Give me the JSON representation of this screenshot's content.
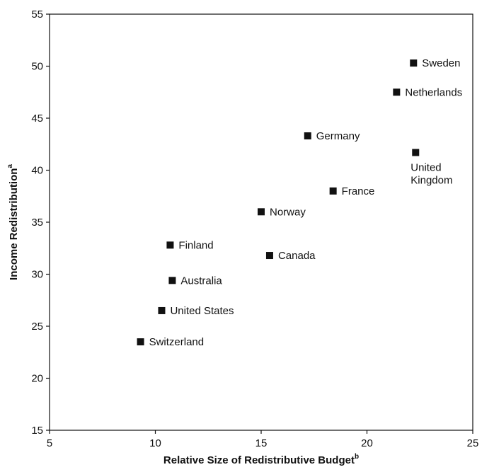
{
  "chart_data": {
    "type": "scatter",
    "xlabel": "Relative Size of Redistributive Budget",
    "xlabel_sup": "b",
    "ylabel": "Income Redistribution",
    "ylabel_sup": "a",
    "xlim": [
      5,
      25
    ],
    "ylim": [
      15,
      55
    ],
    "xticks": [
      "5",
      "10",
      "15",
      "20",
      "25"
    ],
    "yticks": [
      "15",
      "20",
      "25",
      "30",
      "35",
      "40",
      "45",
      "50",
      "55"
    ],
    "grid": false,
    "points": [
      {
        "label": "Sweden",
        "x": 22.2,
        "y": 50.3
      },
      {
        "label": "Netherlands",
        "x": 21.4,
        "y": 47.5
      },
      {
        "label": "Germany",
        "x": 17.2,
        "y": 43.3
      },
      {
        "label": "United Kingdom",
        "label_lines": [
          "United",
          "Kingdom"
        ],
        "x": 22.3,
        "y": 41.7
      },
      {
        "label": "France",
        "x": 18.4,
        "y": 38.0
      },
      {
        "label": "Norway",
        "x": 15.0,
        "y": 36.0
      },
      {
        "label": "Finland",
        "x": 10.7,
        "y": 32.8
      },
      {
        "label": "Canada",
        "x": 15.4,
        "y": 31.8
      },
      {
        "label": "Australia",
        "x": 10.8,
        "y": 29.4
      },
      {
        "label": "United States",
        "x": 10.3,
        "y": 26.5
      },
      {
        "label": "Switzerland",
        "x": 9.3,
        "y": 23.5
      }
    ]
  }
}
